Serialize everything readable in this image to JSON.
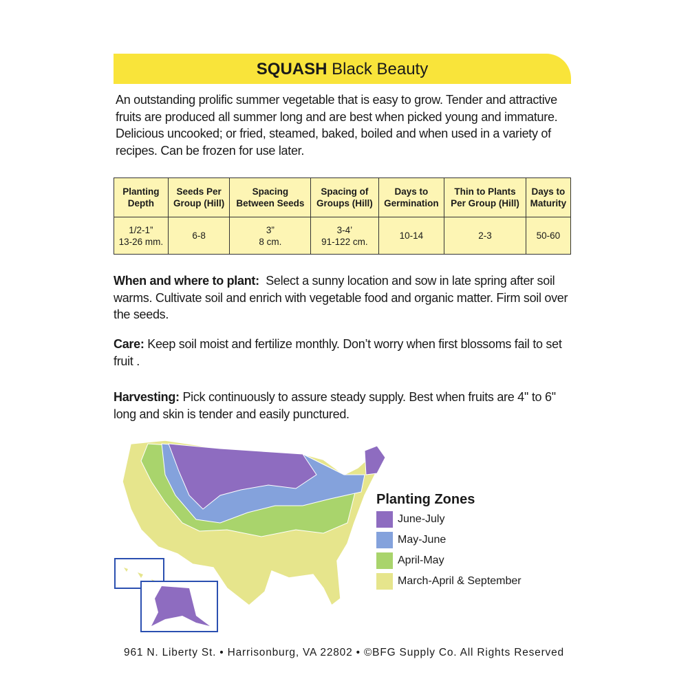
{
  "header": {
    "title_bold": "SQUASH",
    "title_rest": "Black Beauty"
  },
  "description": "An outstanding prolific summer vegetable that is easy to grow. Tender and attractive fruits are produced all summer long and are best when picked young and immature. Delicious uncooked; or fried, steamed, baked, boiled and when used in a variety of recipes. Can be frozen for use later.",
  "table": {
    "headers": [
      "Planting\nDepth",
      "Seeds Per\nGroup (Hill)",
      "Spacing\nBetween Seeds",
      "Spacing of\nGroups (Hill)",
      "Days to\nGermination",
      "Thin to Plants\nPer Group (Hill)",
      "Days to\nMaturity"
    ],
    "rows": [
      [
        "1/2-1”\n13-26 mm.",
        "6-8",
        "3”\n8 cm.",
        "3-4’\n91-122 cm.",
        "10-14",
        "2-3",
        "50-60"
      ]
    ]
  },
  "sections": [
    {
      "label": "When and where to plant:",
      "text": "Select a sunny location and sow in late spring after soil warms. Cultivate soil and enrich with vegetable food and organic matter. Firm soil over the seeds."
    },
    {
      "label": "Care:",
      "text": "Keep soil moist and fertilize monthly. Don’t worry when first blossoms fail to set fruit ."
    },
    {
      "label": "Harvesting:",
      "text": "Pick continuously to assure steady supply. Best when fruits are 4'' to 6'' long and skin is tender and easily punctured."
    }
  ],
  "legend": {
    "title": "Planting Zones",
    "items": [
      {
        "label": "June-July",
        "color": "#8e6cc0"
      },
      {
        "label": "May-June",
        "color": "#84a2dc"
      },
      {
        "label": "April-May",
        "color": "#a9d46c"
      },
      {
        "label": "March-April & September",
        "color": "#e6e58c"
      }
    ]
  },
  "footer": "961 N. Liberty St. • Harrisonburg, VA 22802 • ©BFG Supply Co. All Rights Reserved"
}
